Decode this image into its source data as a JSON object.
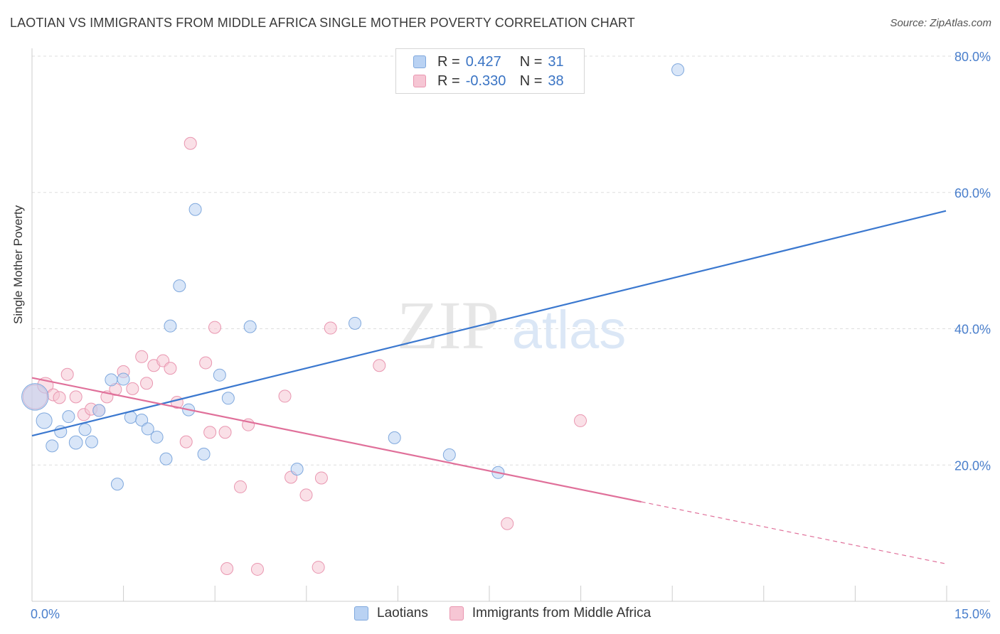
{
  "header": {
    "title": "LAOTIAN VS IMMIGRANTS FROM MIDDLE AFRICA SINGLE MOTHER POVERTY CORRELATION CHART",
    "source": "Source: ZipAtlas.com"
  },
  "watermark": {
    "zip": "ZIP",
    "atlas": "atlas"
  },
  "legend": {
    "series1": {
      "r_label": "R =",
      "r_value": "0.427",
      "n_label": "N =",
      "n_value": "31"
    },
    "series2": {
      "r_label": "R =",
      "r_value": "-0.330",
      "n_label": "N =",
      "n_value": "38"
    }
  },
  "bottom_legend": {
    "series1": "Laotians",
    "series2": "Immigrants from Middle Africa"
  },
  "colors": {
    "blue_fill": "#b9d2f3",
    "blue_stroke": "#7fa8dd",
    "blue_line": "#3b78cf",
    "pink_fill": "#f6c6d4",
    "pink_stroke": "#e996b0",
    "pink_line": "#e0709a",
    "axis_text": "#4a7fcc",
    "grid": "#dddddd"
  },
  "chart_data": {
    "type": "scatter",
    "title": "LAOTIAN VS IMMIGRANTS FROM MIDDLE AFRICA SINGLE MOTHER POVERTY CORRELATION CHART",
    "xlabel": "",
    "ylabel": "Single Mother Poverty",
    "xlim": [
      0,
      15
    ],
    "ylim": [
      0,
      80
    ],
    "x_tick_labels": [
      "0.0%",
      "15.0%"
    ],
    "y_ticks": [
      20,
      40,
      60,
      80
    ],
    "y_tick_labels": [
      "20.0%",
      "40.0%",
      "60.0%",
      "80.0%"
    ],
    "series": [
      {
        "name": "Laotians",
        "r": 0.427,
        "n": 31,
        "trend": {
          "x0": 0,
          "y0": 24.3,
          "x1": 15,
          "y1": 57.3,
          "dashed_from": null
        },
        "points": [
          {
            "x": 0.05,
            "y": 30.0,
            "s": 2.2
          },
          {
            "x": 0.2,
            "y": 26.5,
            "s": 1.3
          },
          {
            "x": 0.33,
            "y": 22.8,
            "s": 1
          },
          {
            "x": 0.47,
            "y": 24.9,
            "s": 1
          },
          {
            "x": 0.6,
            "y": 27.1,
            "s": 1
          },
          {
            "x": 0.72,
            "y": 23.3,
            "s": 1.1
          },
          {
            "x": 0.87,
            "y": 25.2,
            "s": 1
          },
          {
            "x": 0.98,
            "y": 23.4,
            "s": 1
          },
          {
            "x": 1.1,
            "y": 28.0,
            "s": 1
          },
          {
            "x": 1.3,
            "y": 32.5,
            "s": 1
          },
          {
            "x": 1.4,
            "y": 17.2,
            "s": 1
          },
          {
            "x": 1.5,
            "y": 32.6,
            "s": 1
          },
          {
            "x": 1.62,
            "y": 27.0,
            "s": 1
          },
          {
            "x": 1.8,
            "y": 26.6,
            "s": 1
          },
          {
            "x": 1.9,
            "y": 25.3,
            "s": 1
          },
          {
            "x": 2.05,
            "y": 24.1,
            "s": 1
          },
          {
            "x": 2.2,
            "y": 20.9,
            "s": 1
          },
          {
            "x": 2.27,
            "y": 40.4,
            "s": 1
          },
          {
            "x": 2.42,
            "y": 46.3,
            "s": 1
          },
          {
            "x": 2.57,
            "y": 28.1,
            "s": 1
          },
          {
            "x": 2.68,
            "y": 57.5,
            "s": 1
          },
          {
            "x": 2.82,
            "y": 21.6,
            "s": 1
          },
          {
            "x": 3.08,
            "y": 33.2,
            "s": 1
          },
          {
            "x": 3.22,
            "y": 29.8,
            "s": 1
          },
          {
            "x": 3.58,
            "y": 40.3,
            "s": 1
          },
          {
            "x": 4.35,
            "y": 19.4,
            "s": 1
          },
          {
            "x": 5.3,
            "y": 40.8,
            "s": 1
          },
          {
            "x": 5.95,
            "y": 24.0,
            "s": 1
          },
          {
            "x": 6.85,
            "y": 21.5,
            "s": 1
          },
          {
            "x": 7.65,
            "y": 18.9,
            "s": 1
          },
          {
            "x": 10.6,
            "y": 78.0,
            "s": 1
          }
        ]
      },
      {
        "name": "Immigrants from Middle Africa",
        "r": -0.33,
        "n": 38,
        "trend": {
          "x0": 0,
          "y0": 32.8,
          "x1": 15,
          "y1": 5.5,
          "dashed_from": 10.0
        },
        "points": [
          {
            "x": 0.05,
            "y": 30.0,
            "s": 2.0
          },
          {
            "x": 0.22,
            "y": 31.7,
            "s": 1.3
          },
          {
            "x": 0.35,
            "y": 30.3,
            "s": 1
          },
          {
            "x": 0.45,
            "y": 29.9,
            "s": 1
          },
          {
            "x": 0.58,
            "y": 33.3,
            "s": 1
          },
          {
            "x": 0.72,
            "y": 30.0,
            "s": 1
          },
          {
            "x": 0.85,
            "y": 27.4,
            "s": 1
          },
          {
            "x": 0.97,
            "y": 28.2,
            "s": 1
          },
          {
            "x": 1.1,
            "y": 28.0,
            "s": 1
          },
          {
            "x": 1.23,
            "y": 30.0,
            "s": 1
          },
          {
            "x": 1.37,
            "y": 31.1,
            "s": 1
          },
          {
            "x": 1.5,
            "y": 33.7,
            "s": 1
          },
          {
            "x": 1.65,
            "y": 31.2,
            "s": 1
          },
          {
            "x": 1.8,
            "y": 35.9,
            "s": 1
          },
          {
            "x": 1.88,
            "y": 32.0,
            "s": 1
          },
          {
            "x": 2.0,
            "y": 34.6,
            "s": 1
          },
          {
            "x": 2.15,
            "y": 35.3,
            "s": 1
          },
          {
            "x": 2.27,
            "y": 34.2,
            "s": 1
          },
          {
            "x": 2.38,
            "y": 29.2,
            "s": 1
          },
          {
            "x": 2.53,
            "y": 23.4,
            "s": 1
          },
          {
            "x": 2.6,
            "y": 67.2,
            "s": 1
          },
          {
            "x": 2.85,
            "y": 35.0,
            "s": 1
          },
          {
            "x": 2.92,
            "y": 24.8,
            "s": 1
          },
          {
            "x": 3.0,
            "y": 40.2,
            "s": 1
          },
          {
            "x": 3.17,
            "y": 24.8,
            "s": 1
          },
          {
            "x": 3.2,
            "y": 4.8,
            "s": 1
          },
          {
            "x": 3.42,
            "y": 16.8,
            "s": 1
          },
          {
            "x": 3.55,
            "y": 25.9,
            "s": 1
          },
          {
            "x": 3.7,
            "y": 4.7,
            "s": 1
          },
          {
            "x": 4.15,
            "y": 30.1,
            "s": 1
          },
          {
            "x": 4.25,
            "y": 18.2,
            "s": 1
          },
          {
            "x": 4.5,
            "y": 15.6,
            "s": 1
          },
          {
            "x": 4.7,
            "y": 5.0,
            "s": 1
          },
          {
            "x": 4.75,
            "y": 18.1,
            "s": 1
          },
          {
            "x": 4.9,
            "y": 40.1,
            "s": 1
          },
          {
            "x": 5.7,
            "y": 34.6,
            "s": 1
          },
          {
            "x": 7.8,
            "y": 11.4,
            "s": 1
          },
          {
            "x": 9.0,
            "y": 26.5,
            "s": 1
          }
        ]
      }
    ]
  }
}
